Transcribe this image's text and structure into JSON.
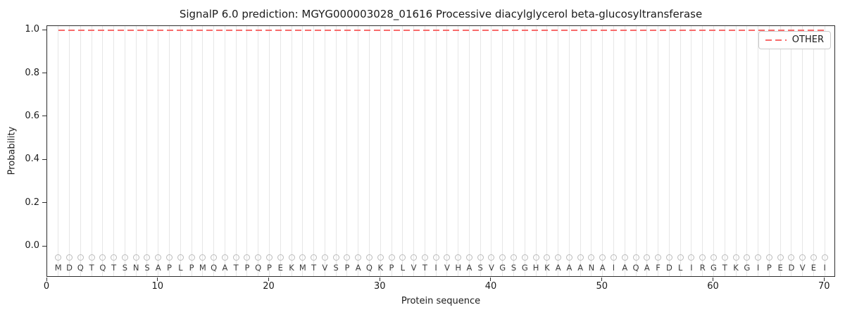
{
  "legend": {
    "entries": [
      {
        "label": "OTHER",
        "color": "#f86b6b",
        "style": "dashed"
      }
    ]
  },
  "colors": {
    "other_line": "#f86b6b",
    "gridline": "#e6e6e6",
    "marker_edge": "#bbbbbb",
    "letter_text": "#3d3d3d",
    "axis_text": "#1c1c1c",
    "spine": "#2e2e2e"
  },
  "chart_data": {
    "type": "line",
    "title": "SignalP 6.0 prediction: MGYG000003028_01616 Processive diacylglycerol beta-glucosyltransferase",
    "xlabel": "Protein sequence",
    "ylabel": "Probability",
    "xlim": [
      0,
      71
    ],
    "ylim": [
      -0.143,
      1.02
    ],
    "x_ticks": [
      0,
      10,
      20,
      30,
      40,
      50,
      60,
      70
    ],
    "y_ticks": [
      0.0,
      0.2,
      0.4,
      0.6,
      0.8,
      1.0
    ],
    "grid": "vertical gridline at every residue position",
    "legend_position": "upper right",
    "sequence": "MDQTQTSNSAPLPMQATPQPEKMTVSPAQKPLVTIVHASVGSGHKAAANAIAQAFDLIRGTKGIPEDVEI",
    "series": [
      {
        "name": "OTHER",
        "style": "dashed",
        "color": "#f86b6b",
        "x_range": [
          1,
          70
        ],
        "constant_value": 1.0
      }
    ],
    "residue_markers": {
      "marker": "o",
      "y_value": -0.05,
      "per_position": true
    }
  }
}
